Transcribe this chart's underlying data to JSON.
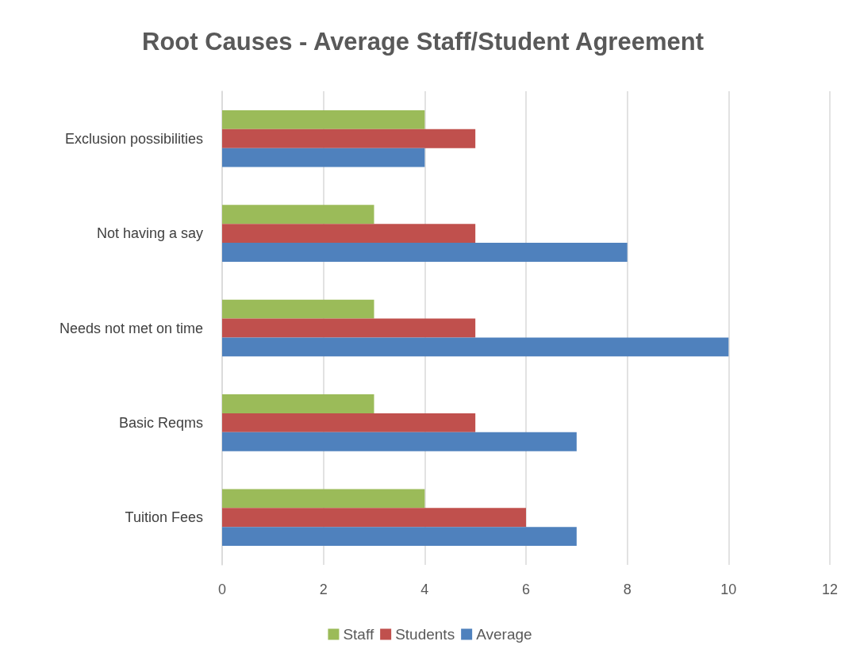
{
  "chart_data": {
    "type": "bar",
    "orientation": "horizontal",
    "title": "Root Causes - Average Staff/Student Agreement",
    "categories": [
      "Exclusion possibilities",
      "Not having a say",
      "Needs not met on time",
      "Basic Reqms",
      "Tuition Fees"
    ],
    "series": [
      {
        "name": "Staff",
        "color": "#9bbb59",
        "values": [
          4,
          3,
          3,
          3,
          4
        ]
      },
      {
        "name": "Students",
        "color": "#c0504d",
        "values": [
          5,
          5,
          5,
          5,
          6
        ]
      },
      {
        "name": "Average",
        "color": "#4f81bd",
        "values": [
          4,
          8,
          10,
          7,
          7
        ]
      }
    ],
    "xlim": [
      0,
      12
    ],
    "xticks": [
      0,
      2,
      4,
      6,
      8,
      10,
      12
    ],
    "grid": "x",
    "legend": "bottom"
  }
}
